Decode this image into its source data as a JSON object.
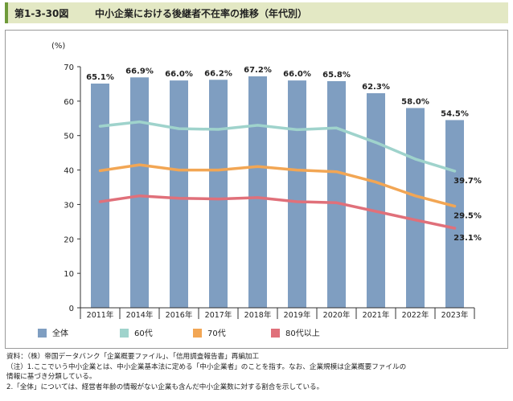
{
  "header": {
    "figure_label": "第1-3-30図",
    "title": "中小企業における後継者不在率の推移（年代別）"
  },
  "colors": {
    "header_bg": "#e3e8c4",
    "header_accent": "#6f9a3a",
    "bar": "#7f9ec1",
    "line_60s": "#9fd3cc",
    "line_70s": "#f2a654",
    "line_80s": "#e0707a"
  },
  "chart_data": {
    "type": "bar",
    "ylabel": "(%)",
    "ylim": [
      0,
      70
    ],
    "yticks": [
      0,
      10,
      20,
      30,
      40,
      50,
      60,
      70
    ],
    "grid": false,
    "legend_position": "bottom-left",
    "categories": [
      "2011年",
      "2014年",
      "2016年",
      "2017年",
      "2018年",
      "2019年",
      "2020年",
      "2021年",
      "2022年",
      "2023年"
    ],
    "series": [
      {
        "name": "全体",
        "kind": "bar",
        "color": "#7f9ec1",
        "values": [
          65.1,
          66.9,
          66.0,
          66.2,
          67.2,
          66.0,
          65.8,
          62.3,
          58.0,
          54.5
        ],
        "labels": [
          "65.1%",
          "66.9%",
          "66.0%",
          "66.2%",
          "67.2%",
          "66.0%",
          "65.8%",
          "62.3%",
          "58.0%",
          "54.5%"
        ]
      },
      {
        "name": "60代",
        "kind": "line",
        "color": "#9fd3cc",
        "values": [
          52.7,
          54.0,
          52.0,
          51.8,
          53.0,
          51.7,
          52.2,
          48.0,
          43.2,
          39.7
        ],
        "last_label": "39.7%"
      },
      {
        "name": "70代",
        "kind": "line",
        "color": "#f2a654",
        "values": [
          39.8,
          41.5,
          40.0,
          40.0,
          41.0,
          40.0,
          39.5,
          36.5,
          32.5,
          29.5
        ],
        "last_label": "29.5%"
      },
      {
        "name": "80代以上",
        "kind": "line",
        "color": "#e0707a",
        "values": [
          30.8,
          32.5,
          31.8,
          31.6,
          32.0,
          30.8,
          30.5,
          28.0,
          25.5,
          23.1
        ],
        "last_label": "23.1%"
      }
    ]
  },
  "notes": [
    "資料：（株）帝国データバンク「企業概要ファイル」、「信用調査報告書」再編加工",
    "（注）1.ここでいう中小企業とは、中小企業基本法に定める「中小企業者」のことを指す。なお、企業規模は企業概要ファイルの",
    "情報に基づき分類している。",
    "2.「全体」については、経営者年齢の情報がない企業も含んだ中小企業数に対する割合を示している。"
  ]
}
